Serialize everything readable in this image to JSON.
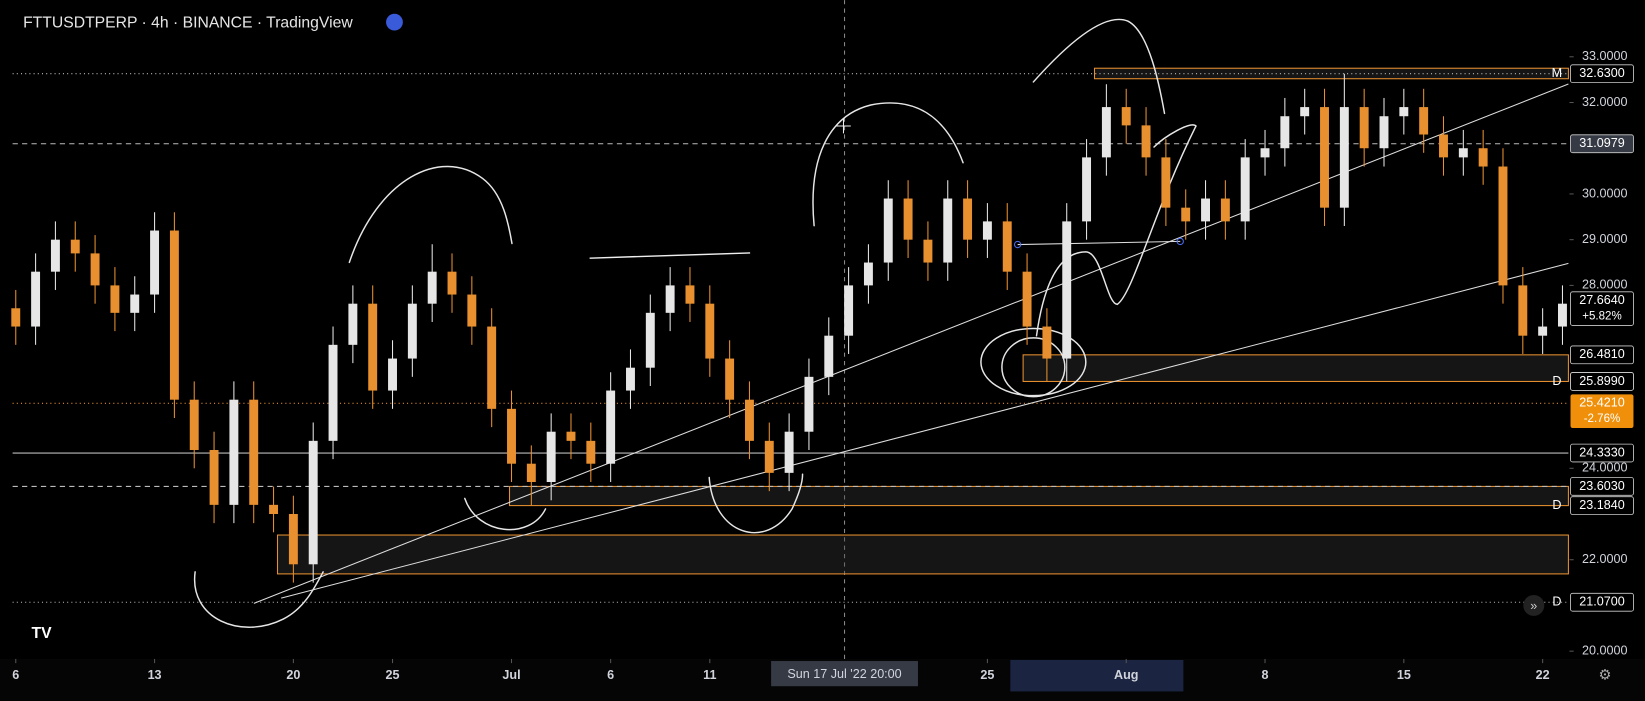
{
  "header": {
    "title": "FTTUSDTPERP · 4h · BINANCE · TradingView"
  },
  "crosshair_label": "Sun 17 Jul '22 20:00",
  "chart_data": {
    "type": "candlestick",
    "up_color": "#e6e6e6",
    "down_color": "#e8902f",
    "x": [
      0,
      1,
      2,
      3,
      4,
      5,
      6,
      7,
      8,
      9,
      10,
      11,
      12,
      13,
      14,
      15,
      16,
      17,
      18,
      19,
      20,
      21,
      22,
      23,
      24,
      25,
      26,
      27,
      28,
      29,
      30,
      31,
      32,
      33,
      34,
      35,
      36,
      37,
      38,
      39,
      40,
      41,
      42,
      43,
      44,
      45,
      46,
      47,
      48,
      49,
      50,
      51,
      52,
      53,
      54,
      55,
      56,
      57,
      58,
      59,
      60,
      61,
      62,
      63,
      64,
      65,
      66,
      67,
      68,
      69,
      70,
      71,
      72,
      73,
      74,
      75,
      76,
      77,
      78
    ],
    "open": [
      27.5,
      27.1,
      28.3,
      29.0,
      28.7,
      28.0,
      27.4,
      27.8,
      29.2,
      25.5,
      24.4,
      23.2,
      25.5,
      23.2,
      23.0,
      21.9,
      24.6,
      26.7,
      27.6,
      25.7,
      26.4,
      27.6,
      28.3,
      27.8,
      27.1,
      25.3,
      24.1,
      23.7,
      24.8,
      24.6,
      24.1,
      25.7,
      26.2,
      27.4,
      28.0,
      27.6,
      26.4,
      25.5,
      24.6,
      23.9,
      24.8,
      26.0,
      26.9,
      28.0,
      28.5,
      29.9,
      29.0,
      28.5,
      29.9,
      29.0,
      29.4,
      28.3,
      27.1,
      26.4,
      29.4,
      30.8,
      31.9,
      31.5,
      30.8,
      29.7,
      29.4,
      29.9,
      29.4,
      30.8,
      31.0,
      31.7,
      31.9,
      29.7,
      31.9,
      31.0,
      31.7,
      31.9,
      31.3,
      30.8,
      31.0,
      30.6,
      28.0,
      26.9,
      27.1
    ],
    "high": [
      27.9,
      28.7,
      29.4,
      29.4,
      29.1,
      28.4,
      28.2,
      29.6,
      29.6,
      25.9,
      24.8,
      25.9,
      25.9,
      23.6,
      23.4,
      25.0,
      27.1,
      28.0,
      28.0,
      26.8,
      28.0,
      28.9,
      28.7,
      28.2,
      27.5,
      25.7,
      24.5,
      25.2,
      25.2,
      25.0,
      26.1,
      26.6,
      27.8,
      28.4,
      28.4,
      28.0,
      26.8,
      25.9,
      25.0,
      25.2,
      26.4,
      27.3,
      28.4,
      28.9,
      30.3,
      30.3,
      29.4,
      30.3,
      30.3,
      29.8,
      29.8,
      28.7,
      27.5,
      29.8,
      31.2,
      32.4,
      32.3,
      31.9,
      31.2,
      30.1,
      30.3,
      30.3,
      31.2,
      31.4,
      32.1,
      32.3,
      32.3,
      32.63,
      32.3,
      32.1,
      32.3,
      32.3,
      31.7,
      31.4,
      31.4,
      31.0,
      28.4,
      27.5,
      28.0
    ],
    "low": [
      26.7,
      26.7,
      27.9,
      28.3,
      27.6,
      27.0,
      27.0,
      27.4,
      25.1,
      24.0,
      22.8,
      22.8,
      22.8,
      22.6,
      21.5,
      21.5,
      24.2,
      26.3,
      25.3,
      25.3,
      26.0,
      27.2,
      27.4,
      26.7,
      24.9,
      23.7,
      23.18,
      23.3,
      24.2,
      23.7,
      23.7,
      25.3,
      25.8,
      27.0,
      27.2,
      26.0,
      25.1,
      24.2,
      23.5,
      23.5,
      24.4,
      25.6,
      26.5,
      27.6,
      28.1,
      28.6,
      28.1,
      28.1,
      28.6,
      28.6,
      27.9,
      26.7,
      25.9,
      25.9,
      29.0,
      30.4,
      31.1,
      30.4,
      29.3,
      29.0,
      29.0,
      29.0,
      29.0,
      30.4,
      30.6,
      31.3,
      29.3,
      29.3,
      30.6,
      30.6,
      31.3,
      30.9,
      30.4,
      30.4,
      30.2,
      27.6,
      26.5,
      26.5,
      26.7
    ],
    "close": [
      27.1,
      28.3,
      29.0,
      28.7,
      28.0,
      27.4,
      27.8,
      29.2,
      25.5,
      24.4,
      23.2,
      25.5,
      23.2,
      23.0,
      21.9,
      24.6,
      26.7,
      27.6,
      25.7,
      26.4,
      27.6,
      28.3,
      27.8,
      27.1,
      25.3,
      24.1,
      23.7,
      24.8,
      24.6,
      24.1,
      25.7,
      26.2,
      27.4,
      28.0,
      27.6,
      26.4,
      25.5,
      24.6,
      23.9,
      24.8,
      26.0,
      26.9,
      28.0,
      28.5,
      29.9,
      29.0,
      28.5,
      29.9,
      29.0,
      29.4,
      28.3,
      27.1,
      26.4,
      29.4,
      30.8,
      31.9,
      31.5,
      30.8,
      29.7,
      29.4,
      29.9,
      29.4,
      30.8,
      31.0,
      31.7,
      31.9,
      29.7,
      31.9,
      31.0,
      31.7,
      31.9,
      31.3,
      30.8,
      31.0,
      30.6,
      28.0,
      26.9,
      27.1,
      27.6
    ],
    "xlim": [
      -0.16,
      78.3
    ],
    "ylim": [
      19.83,
      34.24
    ],
    "xticks": [
      {
        "value": 0,
        "label": "6"
      },
      {
        "value": 7,
        "label": "13"
      },
      {
        "value": 14,
        "label": "20"
      },
      {
        "value": 19,
        "label": "25"
      },
      {
        "value": 25,
        "label": "Jul"
      },
      {
        "value": 30,
        "label": "6"
      },
      {
        "value": 35,
        "label": "11"
      },
      {
        "value": 49,
        "label": "25"
      },
      {
        "value": 56,
        "label": "Aug"
      },
      {
        "value": 63,
        "label": "8"
      },
      {
        "value": 70,
        "label": "15"
      },
      {
        "value": 77,
        "label": "22"
      }
    ],
    "yticks": [
      {
        "value": 20,
        "label": "20.0000"
      },
      {
        "value": 22,
        "label": "22.0000"
      },
      {
        "value": 24,
        "label": "24.0000"
      },
      {
        "value": 28,
        "label": "28.0000"
      },
      {
        "value": 29,
        "label": "29.0000"
      },
      {
        "value": 30,
        "label": "30.0000"
      },
      {
        "value": 32,
        "label": "32.0000"
      },
      {
        "value": 33,
        "label": "33.0000"
      }
    ],
    "zones": [
      {
        "from": 32.75,
        "to": 32.52,
        "start": 54.4
      },
      {
        "from": 26.481,
        "to": 25.899,
        "start": 50.8
      },
      {
        "from": 23.603,
        "to": 23.184,
        "start": 24.9
      },
      {
        "from": 22.54,
        "to": 21.69,
        "start": 13.2
      }
    ],
    "price_labels": [
      {
        "value": 32.63,
        "label": "32.6300",
        "flag": "M",
        "line": "dotted"
      },
      {
        "value": 31.0979,
        "label": "31.0979",
        "line": "dashed",
        "style": "crosshair"
      },
      {
        "value": 27.664,
        "label": "27.6640",
        "change": "+5.82%",
        "line": "none",
        "style": "current"
      },
      {
        "value": 26.481,
        "label": "26.4810",
        "line": "none"
      },
      {
        "value": 25.9,
        "label": "25.9000",
        "line": "none"
      },
      {
        "value": 25.899,
        "label": "25.8990",
        "flag": "D",
        "line": "none"
      },
      {
        "value": 25.421,
        "label": "25.4210",
        "change": "-2.76%",
        "line": "dotted",
        "style": "orange"
      },
      {
        "value": 24.333,
        "label": "24.3330",
        "line": "solid"
      },
      {
        "value": 23.603,
        "label": "23.6030",
        "line": "dashed"
      },
      {
        "value": 23.184,
        "label": "23.1840",
        "flag": "D",
        "line": "none"
      },
      {
        "value": 21.07,
        "label": "21.0700",
        "flag": "D",
        "line": "dotted"
      }
    ]
  }
}
